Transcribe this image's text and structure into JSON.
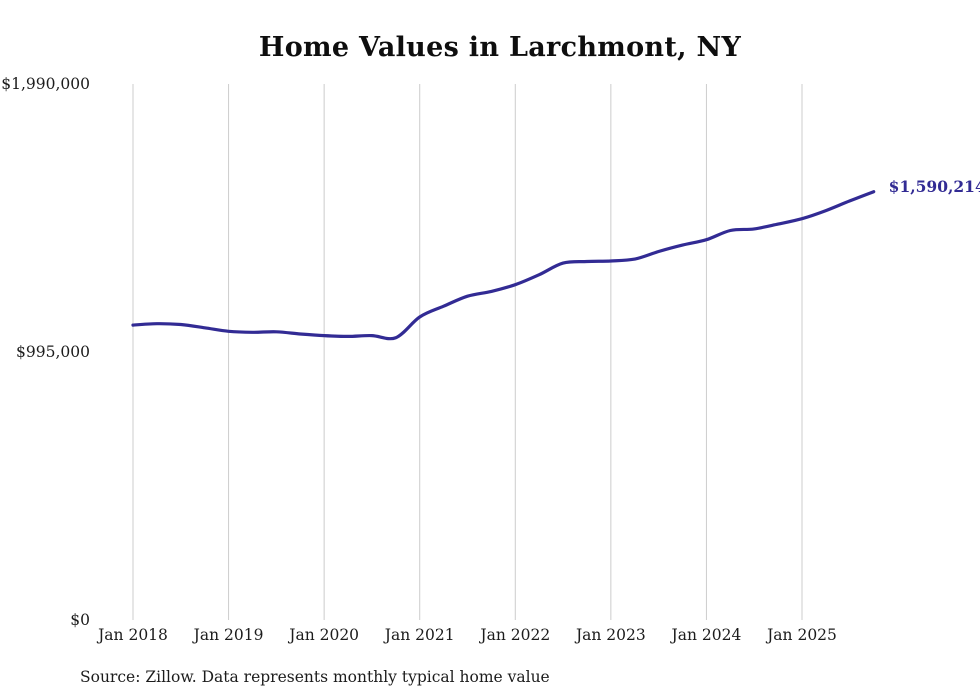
{
  "chart": {
    "title": "Home Values in Larchmont, NY",
    "latest_label": "$1,590,214",
    "source": "Source: Zillow. Data represents monthly typical home value",
    "line_color": "#322b94",
    "grid_color": "#cccccc"
  },
  "chart_data": {
    "type": "line",
    "title": "Home Values in Larchmont, NY",
    "xlabel": "",
    "ylabel": "",
    "ylim": [
      0,
      1990000
    ],
    "grid": "vertical-only",
    "legend": "none",
    "y_ticks": [
      {
        "label": "$1,990,000",
        "value": 1990000
      },
      {
        "label": "$995,000",
        "value": 995000
      },
      {
        "label": "$0",
        "value": 0
      }
    ],
    "x_ticks": [
      {
        "label": "Jan 2018",
        "month": 0
      },
      {
        "label": "Jan 2019",
        "month": 12
      },
      {
        "label": "Jan 2020",
        "month": 24
      },
      {
        "label": "Jan 2021",
        "month": 36
      },
      {
        "label": "Jan 2022",
        "month": 48
      },
      {
        "label": "Jan 2023",
        "month": 60
      },
      {
        "label": "Jan 2024",
        "month": 72
      },
      {
        "label": "Jan 2025",
        "month": 84
      }
    ],
    "series": [
      {
        "name": "Monthly typical home value",
        "points": [
          {
            "month": 0,
            "value": 1095000
          },
          {
            "month": 3,
            "value": 1100000
          },
          {
            "month": 6,
            "value": 1097000
          },
          {
            "month": 9,
            "value": 1085000
          },
          {
            "month": 12,
            "value": 1072000
          },
          {
            "month": 15,
            "value": 1068000
          },
          {
            "month": 18,
            "value": 1070000
          },
          {
            "month": 21,
            "value": 1062000
          },
          {
            "month": 24,
            "value": 1056000
          },
          {
            "month": 27,
            "value": 1053000
          },
          {
            "month": 30,
            "value": 1056000
          },
          {
            "month": 33,
            "value": 1048000
          },
          {
            "month": 36,
            "value": 1125000
          },
          {
            "month": 39,
            "value": 1165000
          },
          {
            "month": 42,
            "value": 1202000
          },
          {
            "month": 45,
            "value": 1220000
          },
          {
            "month": 48,
            "value": 1245000
          },
          {
            "month": 51,
            "value": 1282000
          },
          {
            "month": 54,
            "value": 1325000
          },
          {
            "month": 57,
            "value": 1331000
          },
          {
            "month": 60,
            "value": 1333000
          },
          {
            "month": 63,
            "value": 1340000
          },
          {
            "month": 66,
            "value": 1368000
          },
          {
            "month": 69,
            "value": 1392000
          },
          {
            "month": 72,
            "value": 1412000
          },
          {
            "month": 75,
            "value": 1446000
          },
          {
            "month": 78,
            "value": 1452000
          },
          {
            "month": 81,
            "value": 1470000
          },
          {
            "month": 84,
            "value": 1490000
          },
          {
            "month": 87,
            "value": 1520000
          },
          {
            "month": 90,
            "value": 1556000
          },
          {
            "month": 93,
            "value": 1590214
          }
        ]
      }
    ],
    "latest": {
      "month": 93,
      "value": 1590214,
      "label": "$1,590,214"
    }
  }
}
